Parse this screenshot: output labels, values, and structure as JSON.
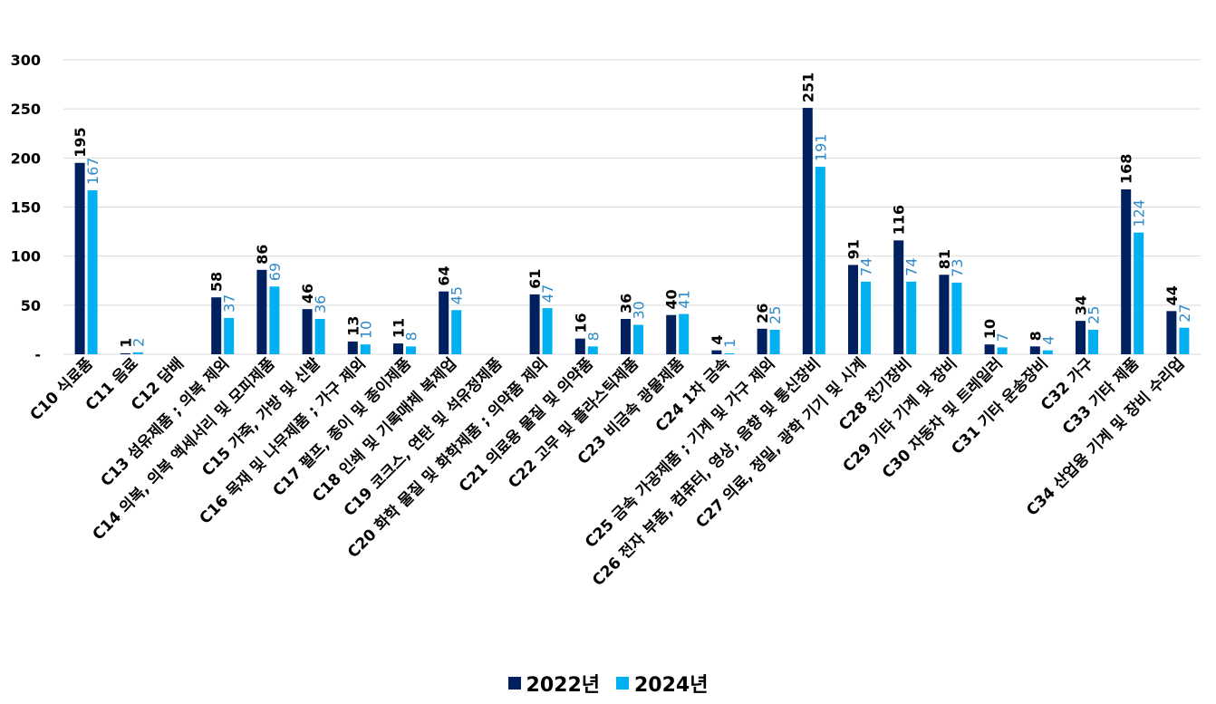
{
  "chart_data": {
    "type": "bar",
    "title": "",
    "xlabel": "",
    "ylabel": "",
    "ylim": [
      0,
      300
    ],
    "yticks": [
      {
        "value": 0,
        "label": "-"
      },
      {
        "value": 50,
        "label": "50"
      },
      {
        "value": 100,
        "label": "100"
      },
      {
        "value": 150,
        "label": "150"
      },
      {
        "value": 200,
        "label": "200"
      },
      {
        "value": 250,
        "label": "250"
      },
      {
        "value": 300,
        "label": "300"
      }
    ],
    "grid": true,
    "legend_position": "bottom",
    "categories": [
      "C10 식료품",
      "C11 음료",
      "C12 담배",
      "C13 섬유제품 ; 의복 제외",
      "C14 의복, 의복 액세서리 및 모피제품",
      "C15 가죽, 가방 및 신발",
      "C16 목재 및 나무제품 ; 가구 제외",
      "C17 펄프, 종이 및 종이제품",
      "C18 인쇄 및 기록매체 복제업",
      "C19 코크스, 연탄 및 석유정제품",
      "C20 화학 물질 및 화학제품 ; 의약품 제외",
      "C21 의료용 물질 및 의약품",
      "C22 고무 및 플라스틱제품",
      "C23 비금속 광물제품",
      "C24 1차 금속",
      "C25 금속 가공제품 ; 기계 및 가구 제외",
      "C26 전자 부품, 컴퓨터, 영상, 음향 및 통신장비",
      "C27 의료, 정밀, 광학 기기 및 시계",
      "C28 전기장비",
      "C29 기타 기계 및 장비",
      "C30 자동차 및 트레일러",
      "C31 기타 운송장비",
      "C32 가구",
      "C33 기타 제품",
      "C34 산업용 기계 및 장비 수리업"
    ],
    "series": [
      {
        "name": "2022년",
        "color": "#002060",
        "label_color": "#000000",
        "values": [
          195,
          1,
          0,
          58,
          86,
          46,
          13,
          11,
          64,
          0,
          61,
          16,
          36,
          40,
          4,
          26,
          251,
          91,
          116,
          81,
          10,
          8,
          34,
          168,
          44
        ],
        "labels": [
          "195",
          "1",
          "",
          "58",
          "86",
          "46",
          "13",
          "11",
          "64",
          "",
          "61",
          "16",
          "36",
          "40",
          "4",
          "26",
          "251",
          "91",
          "116",
          "81",
          "10",
          "8",
          "34",
          "168",
          "44"
        ]
      },
      {
        "name": "2024년",
        "color": "#00B0F0",
        "label_color": "#2E8BC9",
        "values": [
          167,
          2,
          0,
          37,
          69,
          36,
          10,
          8,
          45,
          0,
          47,
          8,
          30,
          41,
          1,
          25,
          191,
          74,
          74,
          73,
          7,
          4,
          25,
          124,
          27
        ],
        "labels": [
          "167",
          "2",
          "",
          "37",
          "69",
          "36",
          "10",
          "8",
          "45",
          "",
          "47",
          "8",
          "30",
          "41",
          "1",
          "25",
          "191",
          "74",
          "74",
          "73",
          "7",
          "4",
          "25",
          "124",
          "27"
        ]
      }
    ]
  }
}
